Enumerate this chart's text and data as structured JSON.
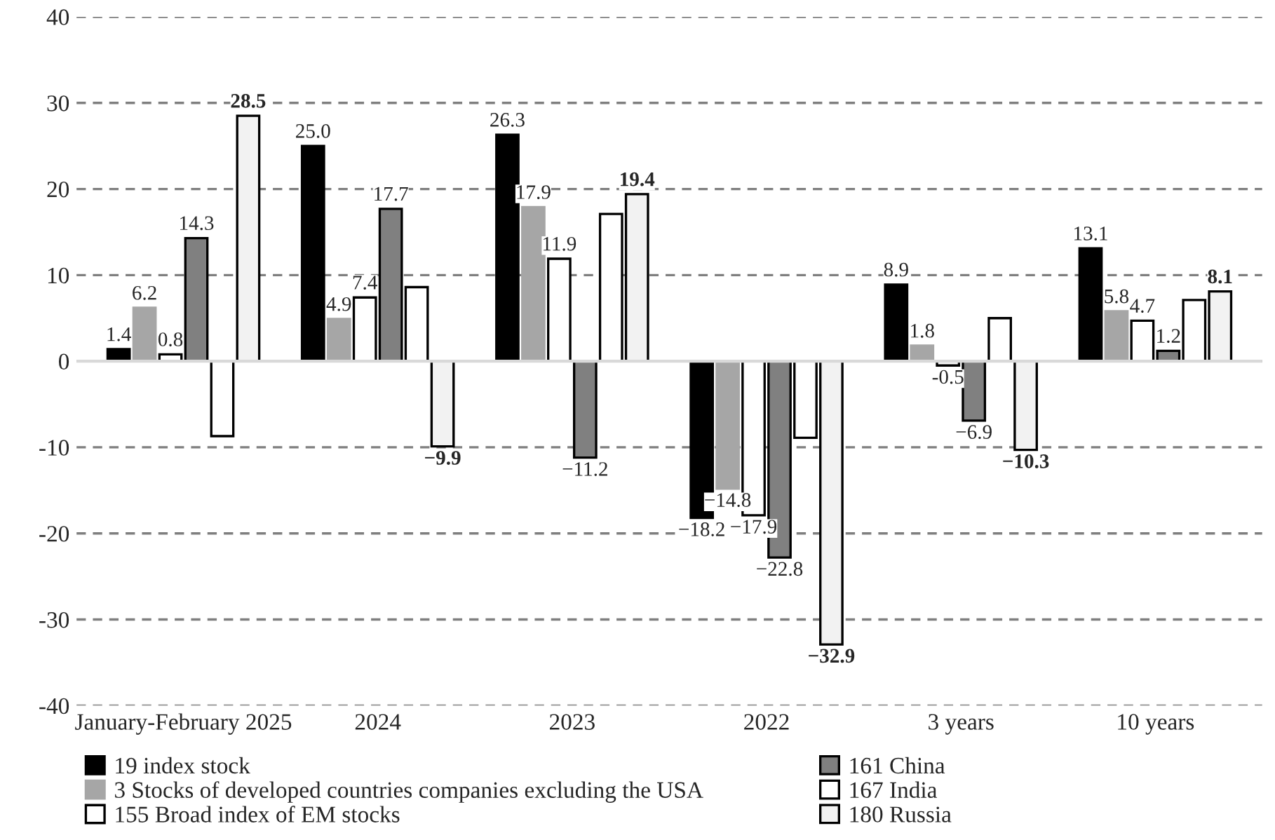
{
  "chart_data": {
    "type": "bar",
    "categories": [
      "January-February 2025",
      "2024",
      "2023",
      "2022",
      "3 years",
      "10 years"
    ],
    "series": [
      {
        "name": "19 index stock",
        "color": "#000000",
        "values": [
          1.4,
          25.0,
          26.3,
          -18.2,
          8.9,
          13.1
        ],
        "value_labels": [
          "1.4",
          "25.0",
          "26.3",
          "−18.2",
          "8.9",
          "13.1"
        ]
      },
      {
        "name": "3 Stocks of developed countries companies excluding the USA",
        "color": "#a6a6a6",
        "values": [
          6.2,
          4.9,
          17.9,
          -14.8,
          1.8,
          5.8
        ],
        "value_labels": [
          "6.2",
          "4.9",
          "17.9",
          "−14.8",
          "1.8",
          "5.8"
        ]
      },
      {
        "name": "155 Broad index of EM stocks",
        "color": "#ffffff",
        "values": [
          0.8,
          7.4,
          11.9,
          -17.9,
          -0.5,
          4.7
        ],
        "value_labels": [
          "0.8",
          "7.4",
          "11.9",
          "−17.9",
          "-0.5",
          "4.7"
        ]
      },
      {
        "name": "161 China",
        "color": "#808080",
        "values": [
          14.3,
          17.7,
          -11.2,
          -22.8,
          -6.9,
          1.2
        ],
        "value_labels": [
          "14.3",
          "17.7",
          "−11.2",
          "−22.8",
          "−6.9",
          "1.2"
        ]
      },
      {
        "name": "167 India",
        "color": "#ffffff",
        "values": [
          -8.7,
          8.6,
          17.1,
          -8.9,
          5.0,
          7.1
        ],
        "value_labels": [
          null,
          null,
          null,
          null,
          null,
          null
        ]
      },
      {
        "name": "180 Russia",
        "color": "#f2f2f2",
        "values": [
          28.5,
          -9.9,
          19.4,
          -32.9,
          -10.3,
          8.1
        ],
        "value_labels": [
          "28.5",
          "−9.9",
          "19.4",
          "−32.9",
          "−10.3",
          "8.1"
        ]
      }
    ],
    "ylim": [
      -40,
      40
    ],
    "yticks": [
      -40,
      -30,
      -20,
      -10,
      0,
      10,
      20,
      30,
      40
    ],
    "grid": "y",
    "legend": "bottom"
  }
}
